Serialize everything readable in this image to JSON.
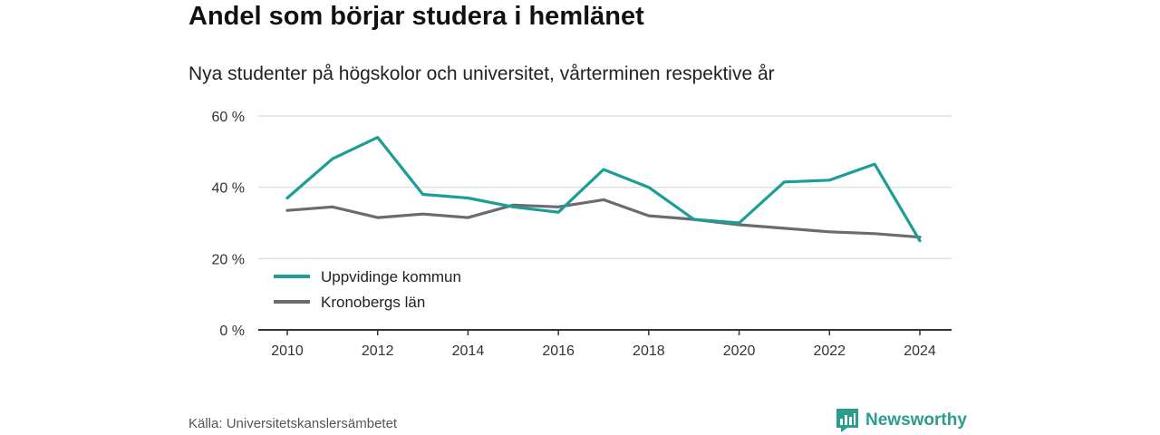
{
  "title": "Andel som börjar studera i hemlänet",
  "subtitle": "Nya studenter på högskolor och universitet, vårterminen respektive år",
  "source": "Källa: Universitetskanslersämbetet",
  "brand": {
    "name": "Newsworthy",
    "icon": "newsworthy-logo-icon"
  },
  "colors": {
    "series1": "#1a9e96",
    "series2": "#6b6b70",
    "grid": "#d9d9d9",
    "axis": "#333333"
  },
  "chart_data": {
    "type": "line",
    "x": [
      2010,
      2011,
      2012,
      2013,
      2014,
      2015,
      2016,
      2017,
      2018,
      2019,
      2020,
      2021,
      2022,
      2023,
      2024
    ],
    "x_ticks": [
      "2010",
      "2012",
      "2014",
      "2016",
      "2018",
      "2020",
      "2022",
      "2024"
    ],
    "y_ticks": [
      "0 %",
      "20 %",
      "40 %",
      "60 %"
    ],
    "ylim": [
      0,
      60
    ],
    "grid": true,
    "legend_position": "bottom-left",
    "series": [
      {
        "name": "Uppvidinge kommun",
        "values": [
          37,
          48,
          54,
          38,
          37,
          34.5,
          33,
          45,
          40,
          31,
          30,
          41.5,
          42,
          46.5,
          25
        ]
      },
      {
        "name": "Kronobergs län",
        "values": [
          33.5,
          34.5,
          31.5,
          32.5,
          31.5,
          35,
          34.5,
          36.5,
          32,
          31,
          29.5,
          28.5,
          27.5,
          27,
          26
        ]
      }
    ]
  }
}
